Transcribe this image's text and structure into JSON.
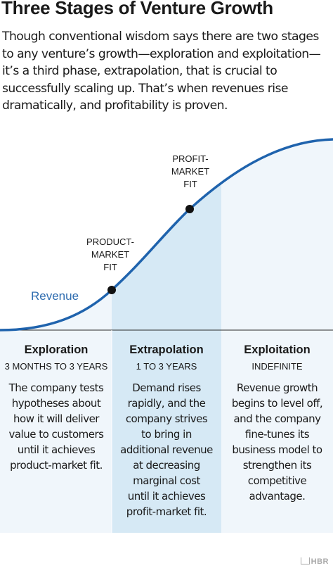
{
  "title": "Three Stages of Venture Growth",
  "subtitle": "Though conventional wisdom says there are two stages to any venture’s growth—exploration and exploitation—it’s a third phase, extrapolation, that is crucial to successfully scaling up. That’s when revenues rise dramatically, and profitability is proven.",
  "chart_data": {
    "type": "area",
    "series": [
      {
        "name": "Revenue"
      }
    ],
    "milestones": [
      {
        "label_lines": [
          "PRODUCT-",
          "MARKET",
          "FIT"
        ]
      },
      {
        "label_lines": [
          "PROFIT-",
          "MARKET",
          "FIT"
        ]
      }
    ]
  },
  "stages": [
    {
      "name": "Exploration",
      "duration": "3 MONTHS TO 3 YEARS",
      "description_lines": [
        "The company tests",
        "hypotheses about",
        "how it will deliver",
        "value to customers",
        "until it achieves",
        "product-market fit."
      ]
    },
    {
      "name": "Extrapolation",
      "duration": "1 TO 3 YEARS",
      "description_lines": [
        "Demand rises",
        "rapidly, and the",
        "company strives",
        "to bring in",
        "additional revenue",
        "at decreasing",
        "marginal cost",
        "until it achieves",
        "profit-market fit."
      ]
    },
    {
      "name": "Exploitation",
      "duration": "INDEFINITE",
      "description_lines": [
        "Revenue growth",
        "begins to level off,",
        "and the company",
        "fine-tunes its",
        "business model to",
        "strengthen its",
        "competitive",
        "advantage."
      ]
    }
  ],
  "logo": "HBR",
  "colors": {
    "curve": "#1f63ad",
    "label_blue": "#2f6db0",
    "band_light": "#f0f6fb",
    "band_mid": "#d6e9f5",
    "dot": "#111111"
  }
}
